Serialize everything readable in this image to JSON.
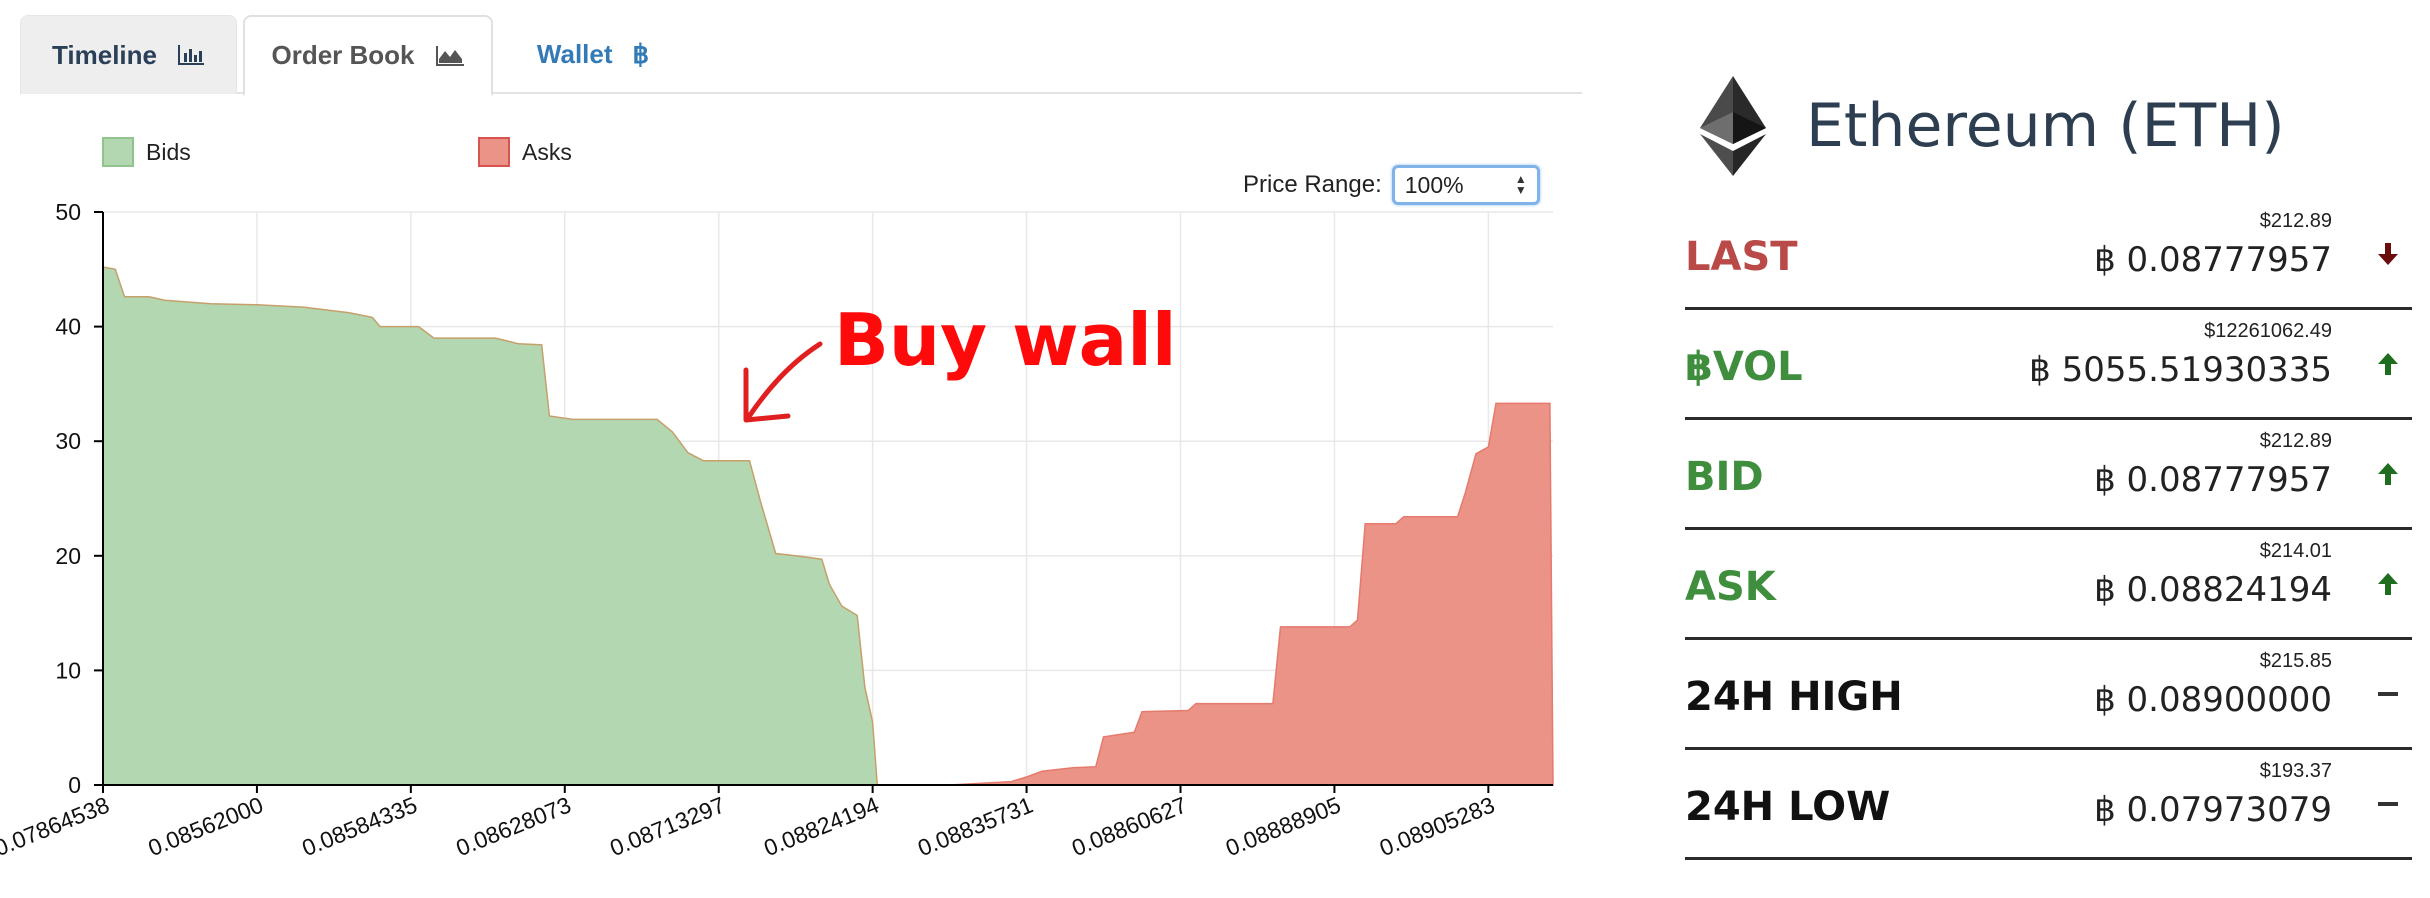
{
  "tabs": [
    {
      "label": "Timeline",
      "icon": "bar-chart-icon"
    },
    {
      "label": "Order Book",
      "icon": "area-chart-icon"
    },
    {
      "label": "Wallet",
      "icon": "bitcoin-icon"
    }
  ],
  "colors": {
    "bids_fill": "#b3d7b1",
    "bids_stroke": "#c5a06b",
    "asks_fill": "#ea9386",
    "asks_stroke": "#e57a6d",
    "annotation": "#ff0a0a",
    "up": "#1f6e1f",
    "down": "#6b0d0d",
    "label_red": "#b94a48",
    "label_green": "#3e8e3e",
    "label_dark": "#111111"
  },
  "legend": {
    "bids": "Bids",
    "asks": "Asks"
  },
  "price_range": {
    "label": "Price Range:",
    "value": "100%"
  },
  "annotation": {
    "text": "Buy wall"
  },
  "chart_data": {
    "type": "area",
    "ylim": [
      0,
      50
    ],
    "yticks": [
      0,
      10,
      20,
      30,
      40,
      50
    ],
    "xticks": [
      "0.07864538",
      "0.08562000",
      "0.08584335",
      "0.08628073",
      "0.08713297",
      "0.08824194",
      "0.08835731",
      "0.08860627",
      "0.08888905",
      "0.08905283"
    ],
    "legend_position": "top-left",
    "grid": true,
    "series": [
      {
        "name": "Bids",
        "points": [
          [
            0,
            45.2
          ],
          [
            0.08,
            45.0
          ],
          [
            0.14,
            42.6
          ],
          [
            0.3,
            42.6
          ],
          [
            0.4,
            42.3
          ],
          [
            0.7,
            42.0
          ],
          [
            1.0,
            41.9
          ],
          [
            1.3,
            41.7
          ],
          [
            1.6,
            41.2
          ],
          [
            1.75,
            40.8
          ],
          [
            1.8,
            40.0
          ],
          [
            2.05,
            40.0
          ],
          [
            2.15,
            39.0
          ],
          [
            2.55,
            39.0
          ],
          [
            2.7,
            38.5
          ],
          [
            2.85,
            38.4
          ],
          [
            2.9,
            32.2
          ],
          [
            3.05,
            31.9
          ],
          [
            3.6,
            31.9
          ],
          [
            3.7,
            30.8
          ],
          [
            3.8,
            29.0
          ],
          [
            3.9,
            28.3
          ],
          [
            4.2,
            28.3
          ],
          [
            4.27,
            24.8
          ],
          [
            4.37,
            20.2
          ],
          [
            4.5,
            20.0
          ],
          [
            4.67,
            19.7
          ],
          [
            4.72,
            17.5
          ],
          [
            4.8,
            15.6
          ],
          [
            4.9,
            14.8
          ],
          [
            4.95,
            8.5
          ],
          [
            5.0,
            5.5
          ],
          [
            5.03,
            0
          ]
        ]
      },
      {
        "name": "Asks",
        "points": [
          [
            5.5,
            0
          ],
          [
            5.9,
            0.3
          ],
          [
            6.0,
            0.7
          ],
          [
            6.1,
            1.2
          ],
          [
            6.3,
            1.5
          ],
          [
            6.45,
            1.6
          ],
          [
            6.5,
            4.2
          ],
          [
            6.7,
            4.6
          ],
          [
            6.75,
            6.4
          ],
          [
            7.05,
            6.5
          ],
          [
            7.1,
            7.1
          ],
          [
            7.6,
            7.1
          ],
          [
            7.65,
            13.8
          ],
          [
            8.1,
            13.8
          ],
          [
            8.15,
            14.4
          ],
          [
            8.2,
            22.8
          ],
          [
            8.4,
            22.8
          ],
          [
            8.45,
            23.4
          ],
          [
            8.8,
            23.4
          ],
          [
            8.85,
            25.5
          ],
          [
            8.92,
            28.9
          ],
          [
            9.0,
            29.5
          ],
          [
            9.05,
            33.3
          ],
          [
            9.4,
            33.3
          ],
          [
            9.42,
            0
          ]
        ]
      }
    ]
  },
  "coin": {
    "name": "Ethereum (ETH)",
    "icon": "ethereum-logo-icon"
  },
  "stats": [
    {
      "label": "LAST",
      "usd": "$212.89",
      "btc": "฿ 0.08777957",
      "trend": "down",
      "label_color": "#b94a48"
    },
    {
      "label": "฿VOL",
      "usd": "$12261062.49",
      "btc": "฿ 5055.51930335",
      "trend": "up",
      "label_color": "#3e8e3e"
    },
    {
      "label": "BID",
      "usd": "$212.89",
      "btc": "฿ 0.08777957",
      "trend": "up",
      "label_color": "#3e8e3e"
    },
    {
      "label": "ASK",
      "usd": "$214.01",
      "btc": "฿ 0.08824194",
      "trend": "up",
      "label_color": "#3e8e3e"
    },
    {
      "label": "24H HIGH",
      "usd": "$215.85",
      "btc": "฿ 0.08900000",
      "trend": "flat",
      "label_color": "#111111"
    },
    {
      "label": "24H LOW",
      "usd": "$193.37",
      "btc": "฿ 0.07973079",
      "trend": "flat",
      "label_color": "#111111"
    }
  ]
}
